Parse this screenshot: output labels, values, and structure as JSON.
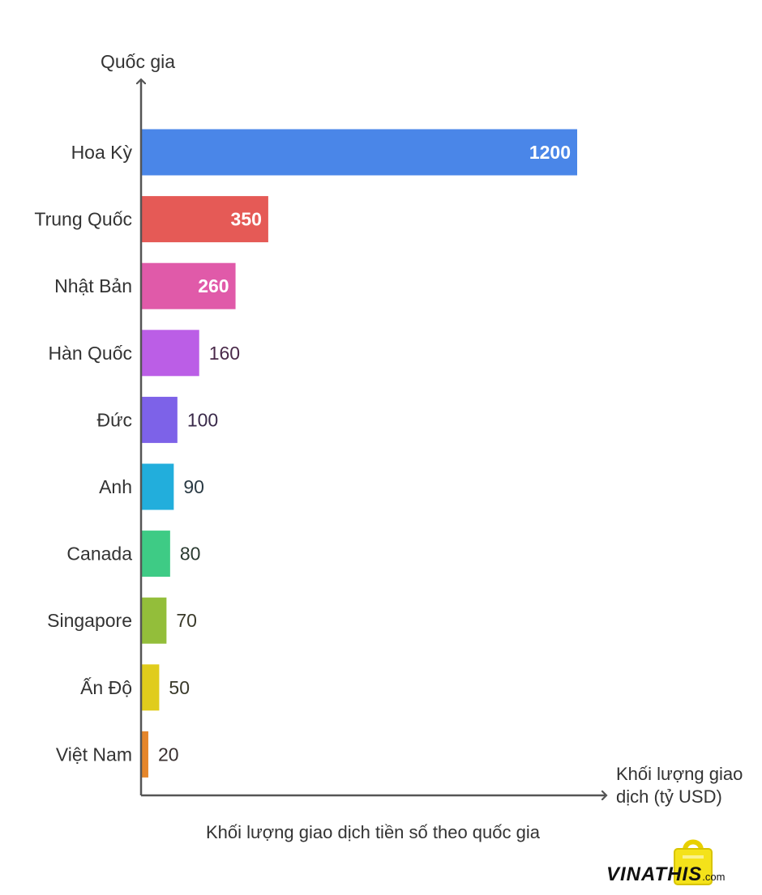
{
  "chart_data": {
    "type": "bar",
    "orientation": "horizontal",
    "title": "Khối lượng giao dịch tiền số theo quốc gia",
    "xlabel": "Khối lượng giao dịch (tỷ USD)",
    "ylabel": "Quốc gia",
    "categories": [
      "Hoa Kỳ",
      "Trung Quốc",
      "Nhật Bản",
      "Hàn Quốc",
      "Đức",
      "Anh",
      "Canada",
      "Singapore",
      "Ấn Độ",
      "Việt Nam"
    ],
    "values": [
      1200,
      350,
      260,
      160,
      100,
      90,
      80,
      70,
      50,
      20
    ],
    "value_labels": [
      "1200",
      "350",
      "260",
      "160",
      "100",
      "90",
      "80",
      "70",
      "50",
      "20"
    ],
    "colors": [
      "#4a86e8",
      "#e55a56",
      "#e05aa9",
      "#bb5ee6",
      "#7d62e8",
      "#22aedc",
      "#3ecb85",
      "#93be3a",
      "#e0cc1c",
      "#e5862b"
    ],
    "label_colors": [
      "#4a3a3a",
      "#5a3030",
      "#4a2a40",
      "#4a2a4a",
      "#3a2a4a",
      "#2a3a44",
      "#2a3a30",
      "#3a3a2a",
      "#3a3a2a",
      "#3a3030"
    ],
    "xlim": [
      0,
      1200
    ],
    "grid": false,
    "legend": "none"
  },
  "logo": {
    "brand": "VINATHIS",
    "domain": ".com"
  }
}
